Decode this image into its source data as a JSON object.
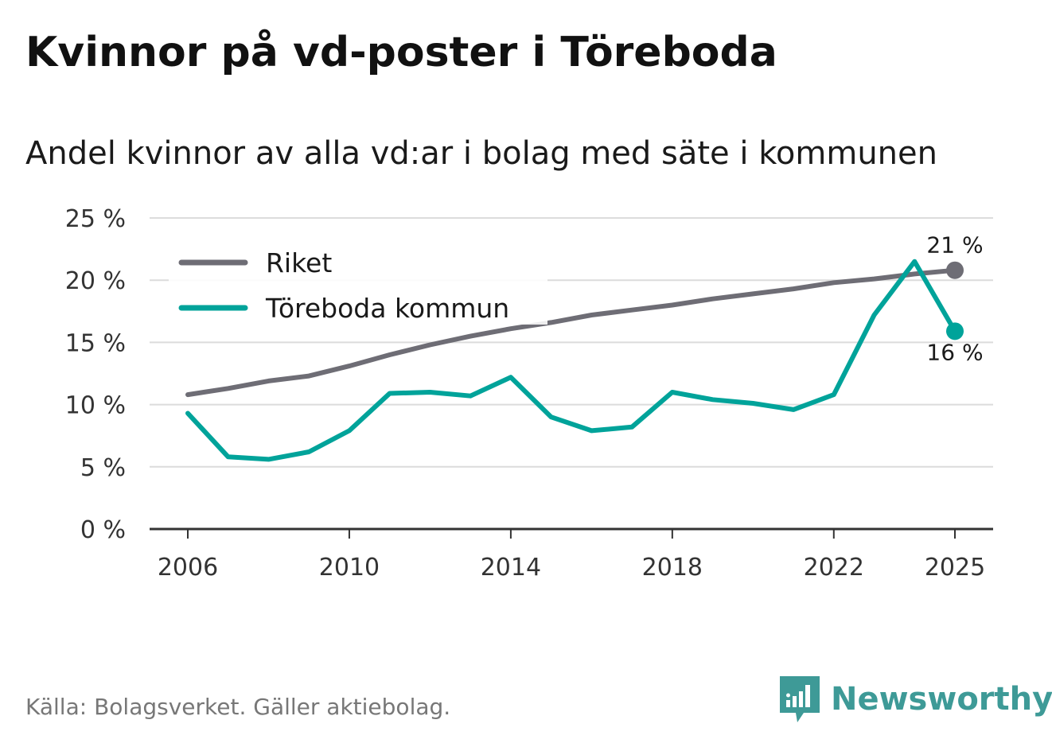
{
  "title": "Kvinnor på vd-poster i Töreboda",
  "subtitle": "Andel kvinnor av alla vd:ar i bolag med säte i kommunen",
  "source": "Källa: Bolagsverket. Gäller aktiebolag.",
  "brand": "Newsworthy",
  "colors": {
    "riket": "#6e6d75",
    "toreboda": "#00a39a",
    "grid": "#dcdcdc",
    "axis": "#333333",
    "brand": "#3e9a97"
  },
  "chart_data": {
    "type": "line",
    "title": "Kvinnor på vd-poster i Töreboda",
    "subtitle": "Andel kvinnor av alla vd:ar i bolag med säte i kommunen",
    "xlabel": "",
    "ylabel": "",
    "x": [
      2006,
      2007,
      2008,
      2009,
      2010,
      2011,
      2012,
      2013,
      2014,
      2015,
      2016,
      2017,
      2018,
      2019,
      2020,
      2021,
      2022,
      2023,
      2024,
      2025
    ],
    "xticks": [
      2006,
      2010,
      2014,
      2018,
      2022,
      2025
    ],
    "xtick_labels": [
      "2006",
      "2010",
      "2014",
      "2018",
      "2022",
      "2025"
    ],
    "xlim": [
      2006,
      2025
    ],
    "ylim": [
      0,
      25
    ],
    "yticks": [
      0,
      5,
      10,
      15,
      20,
      25
    ],
    "ytick_labels": [
      "0 %",
      "5 %",
      "10 %",
      "15 %",
      "20 %",
      "25 %"
    ],
    "grid": true,
    "legend_position": "top-left",
    "series": [
      {
        "name": "Riket",
        "values": [
          10.8,
          11.3,
          11.9,
          12.3,
          13.1,
          14.0,
          14.8,
          15.5,
          16.1,
          16.6,
          17.2,
          17.6,
          18.0,
          18.5,
          18.9,
          19.3,
          19.8,
          20.1,
          20.5,
          20.8
        ],
        "end_label": "21 %"
      },
      {
        "name": "Töreboda kommun",
        "values": [
          9.3,
          5.8,
          5.6,
          6.2,
          7.9,
          10.9,
          11.0,
          10.7,
          12.2,
          9.0,
          7.9,
          8.2,
          11.0,
          10.4,
          10.1,
          9.6,
          10.8,
          17.2,
          21.5,
          15.9
        ],
        "end_label": "16 %"
      }
    ]
  }
}
